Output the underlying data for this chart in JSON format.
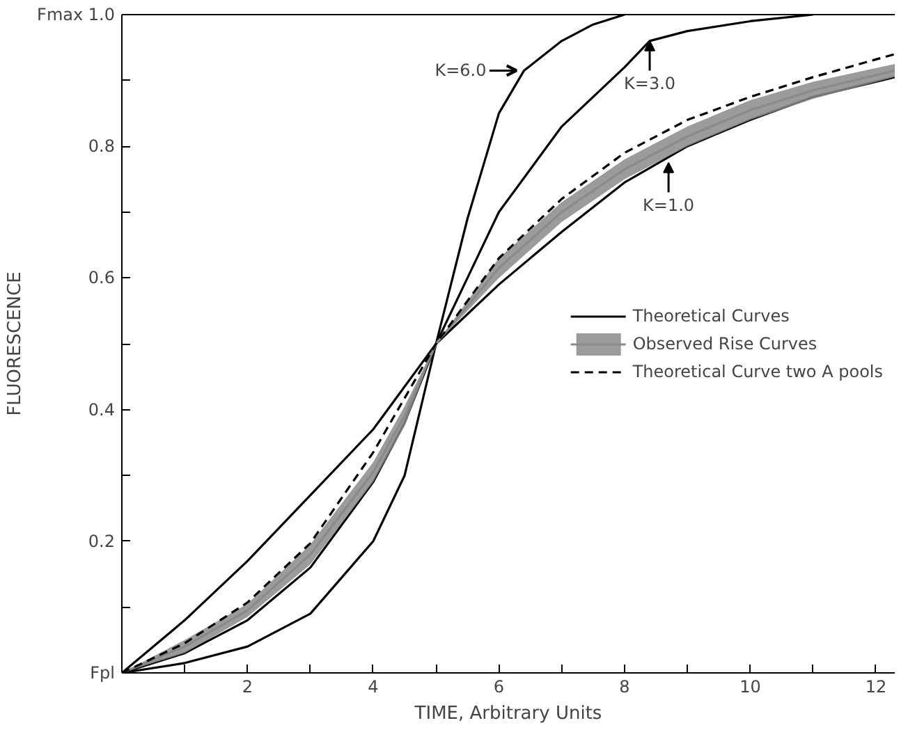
{
  "chart_data": {
    "type": "line",
    "xlabel": "TIME, Arbitrary Units",
    "ylabel": "FLUORESCENCE",
    "xlim": [
      0,
      12.3
    ],
    "ylim": [
      0,
      1.0
    ],
    "xticks": [
      {
        "value": 1,
        "label": null
      },
      2,
      {
        "value": 3,
        "label": null
      },
      4,
      {
        "value": 5,
        "label": null
      },
      6,
      {
        "value": 7,
        "label": null
      },
      8,
      {
        "value": 9,
        "label": null
      },
      10,
      {
        "value": 11,
        "label": null
      },
      12
    ],
    "yticks": [
      {
        "value": 0,
        "label": "Fpl"
      },
      {
        "value": 0.1,
        "label": null
      },
      0.2,
      {
        "value": 0.3,
        "label": null
      },
      0.4,
      {
        "value": 0.5,
        "label": null
      },
      0.6,
      {
        "value": 0.7,
        "label": null
      },
      0.8,
      {
        "value": 0.9,
        "label": null
      },
      {
        "value": 1.0,
        "label": "Fmax 1.0"
      }
    ],
    "grid": false,
    "legend": "right",
    "marker": "none",
    "series": [
      {
        "name": "Theoretical Curves",
        "color": "#000000",
        "line_style": "solid",
        "x": [
          0,
          1,
          2,
          3,
          4,
          4.5,
          5,
          5.5,
          6,
          6.4,
          7,
          7.5,
          8
        ],
        "values": [
          0,
          0.015,
          0.04,
          0.09,
          0.2,
          0.3,
          0.5,
          0.69,
          0.85,
          0.915,
          0.96,
          0.985,
          1.0
        ]
      },
      {
        "color": "#000000",
        "line_style": "solid",
        "x": [
          0,
          1,
          2,
          3,
          4,
          4.5,
          5,
          5.5,
          6,
          7,
          8,
          8.4,
          9,
          10,
          11
        ],
        "values": [
          0,
          0.03,
          0.08,
          0.16,
          0.29,
          0.38,
          0.5,
          0.6,
          0.7,
          0.83,
          0.92,
          0.96,
          0.975,
          0.99,
          1.0
        ]
      },
      {
        "color": "#000000",
        "line_style": "solid",
        "x": [
          0,
          1,
          2,
          3,
          4,
          5,
          6,
          7,
          8,
          9,
          10,
          11,
          12.3
        ],
        "values": [
          0,
          0.08,
          0.17,
          0.27,
          0.37,
          0.5,
          0.59,
          0.67,
          0.745,
          0.8,
          0.84,
          0.875,
          0.905
        ]
      },
      {
        "name": "Observed Rise Curves",
        "color": "#8a8a8a",
        "line_style": "solid",
        "x": [
          0,
          1,
          2,
          3,
          4,
          4.5,
          5,
          6,
          7,
          8,
          9,
          10,
          11,
          12.3
        ],
        "values": [
          0,
          0.04,
          0.095,
          0.18,
          0.305,
          0.39,
          0.5,
          0.615,
          0.7,
          0.765,
          0.815,
          0.855,
          0.885,
          0.915
        ],
        "lower": [
          0,
          0.03,
          0.085,
          0.165,
          0.29,
          0.375,
          0.5,
          0.6,
          0.685,
          0.75,
          0.8,
          0.84,
          0.872,
          0.905
        ],
        "upper": [
          0,
          0.05,
          0.105,
          0.195,
          0.32,
          0.405,
          0.5,
          0.63,
          0.715,
          0.78,
          0.83,
          0.87,
          0.898,
          0.925
        ]
      },
      {
        "name": "Theoretical Curve two A pools",
        "color": "#000000",
        "line_style": "dashed",
        "x": [
          0,
          1,
          2,
          3,
          4,
          5,
          6,
          7,
          8,
          9,
          10,
          11,
          12.3
        ],
        "values": [
          0,
          0.045,
          0.107,
          0.197,
          0.335,
          0.5,
          0.63,
          0.72,
          0.79,
          0.84,
          0.875,
          0.905,
          0.94
        ]
      }
    ],
    "annotations": [
      {
        "text": "K=6.0",
        "x": 6.4,
        "y": 0.915
      },
      {
        "text": "K=3.0",
        "x": 8.4,
        "y": 0.96
      },
      {
        "text": "K=1.0",
        "x": 8.7,
        "y": 0.775
      }
    ]
  }
}
